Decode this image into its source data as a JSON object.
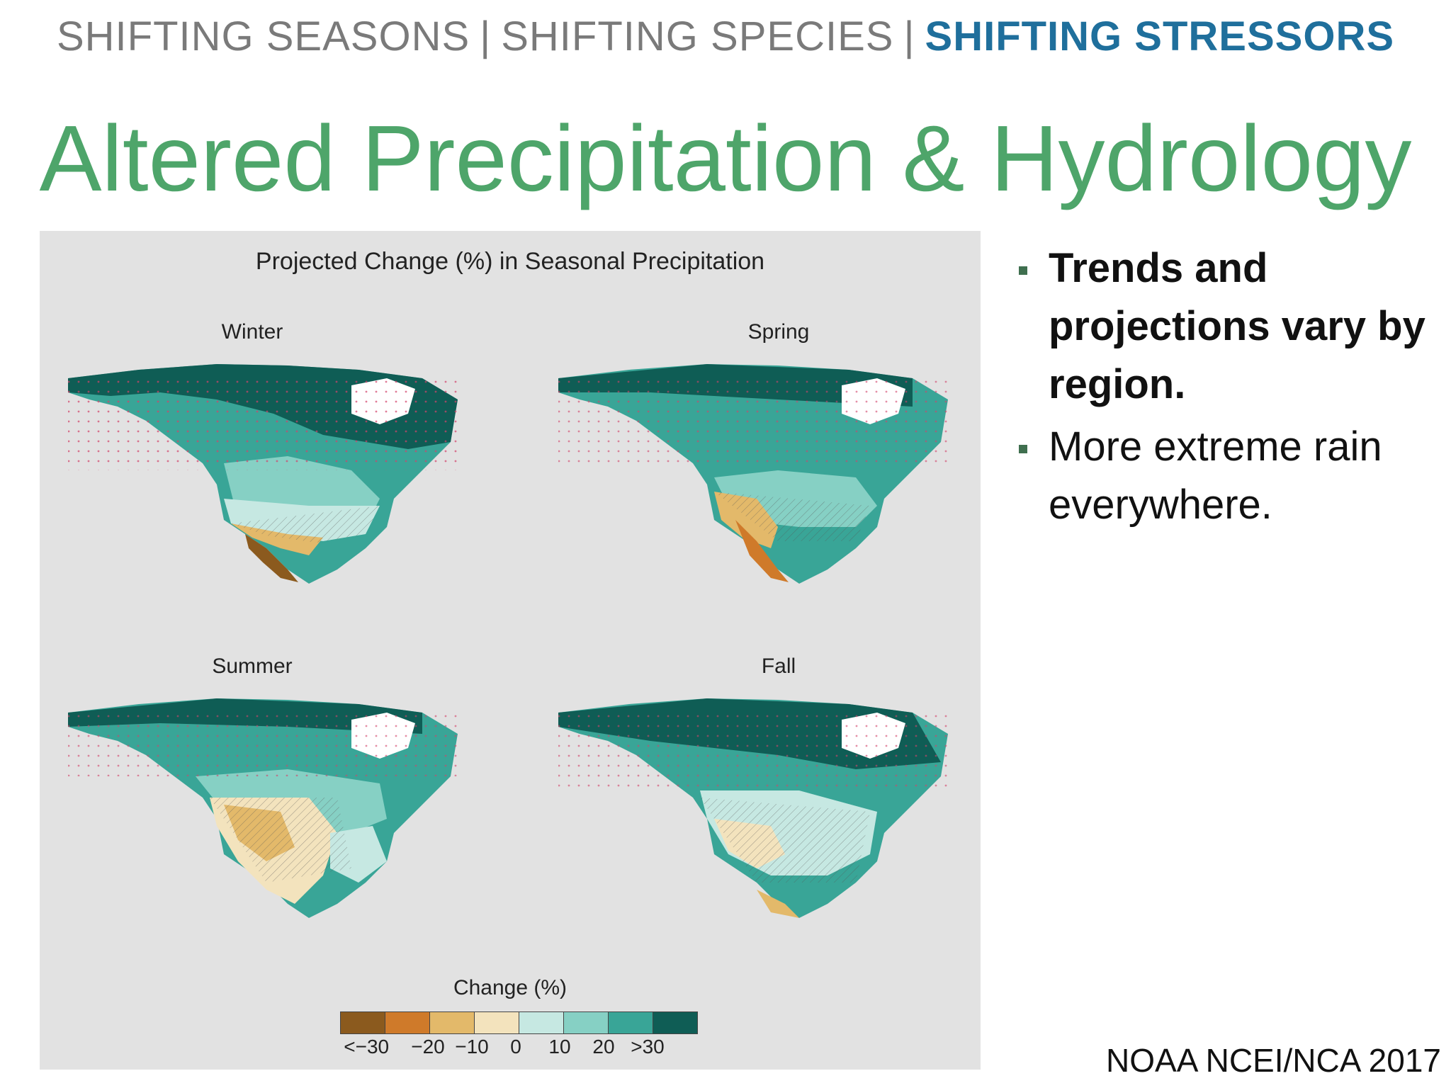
{
  "nav": {
    "items": [
      {
        "label": "SHIFTING SEASONS",
        "active": false
      },
      {
        "label": "SHIFTING SPECIES",
        "active": false
      },
      {
        "label": "SHIFTING STRESSORS",
        "active": true
      }
    ],
    "separator": "|"
  },
  "slide": {
    "title": "Altered Precipitation & Hydrology"
  },
  "figure": {
    "title": "Projected Change (%) in Seasonal Precipitation",
    "seasons": {
      "winter": "Winter",
      "spring": "Spring",
      "summer": "Summer",
      "fall": "Fall"
    },
    "legend": {
      "title": "Change (%)",
      "colors": [
        "#8b5a1e",
        "#cf7a2a",
        "#e3b96a",
        "#f3e3bd",
        "#c6e8e2",
        "#86d0c4",
        "#39a597",
        "#0f5d55"
      ],
      "ticks": [
        "<−30",
        "−20",
        "−10",
        "0",
        "10",
        "20",
        ">30"
      ]
    }
  },
  "bullets": [
    {
      "text": "Trends and projections vary by region.",
      "bold": true
    },
    {
      "text": "More extreme rain everywhere.",
      "bold": false
    }
  ],
  "credit": "NOAA NCEI/NCA 2017"
}
